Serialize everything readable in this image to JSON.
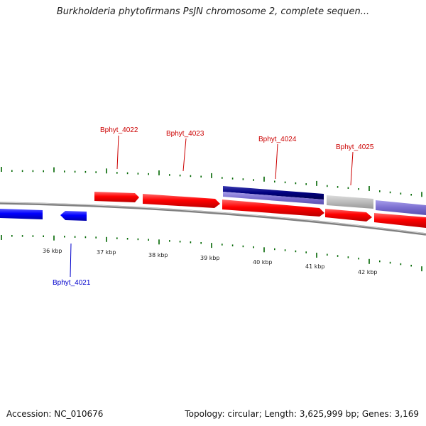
{
  "title": "Burkholderia phytofirmans PsJN chromosome 2, complete sequen...",
  "footer": {
    "accession": "Accession: NC_010676",
    "summary": "Topology: circular; Length: 3,625,999 bp; Genes: 3,169"
  },
  "colors": {
    "forward_gene": "#ff0000",
    "reverse_gene": "#0000ff",
    "dark_blue_gene": "#000080",
    "purple_gene": "#7b6fd0",
    "gray_gene": "#bbbbbb",
    "forward_label": "#cc0000",
    "reverse_label": "#0000cc",
    "tick": "#006600",
    "backbone": "#888888"
  },
  "scale_labels": [
    "36 kbp",
    "37 kbp",
    "38 kbp",
    "39 kbp",
    "40 kbp",
    "41 kbp",
    "42 kbp"
  ],
  "genes": [
    {
      "label": "Bphyt_4021",
      "strand": "reverse"
    },
    {
      "label": "Bphyt_4022",
      "strand": "forward"
    },
    {
      "label": "Bphyt_4023",
      "strand": "forward"
    },
    {
      "label": "Bphyt_4024",
      "strand": "forward"
    },
    {
      "label": "Bphyt_4025",
      "strand": "forward"
    }
  ]
}
